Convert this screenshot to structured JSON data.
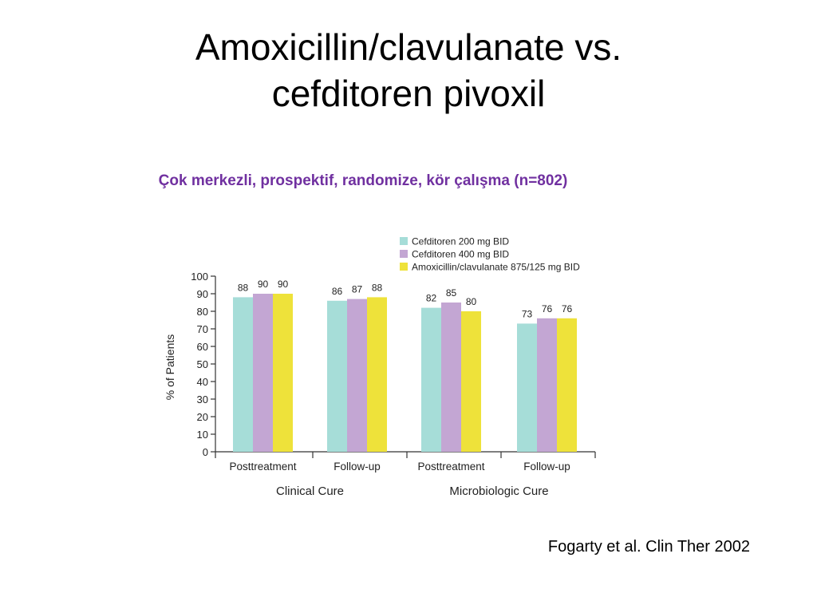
{
  "slide": {
    "title_line1": "Amoxicillin/clavulanate vs.",
    "title_line2": "cefditoren pivoxil",
    "subtitle": "Çok merkezli, prospektif, randomize,  kör çalışma (n=802)",
    "subtitle_color": "#7030A0",
    "citation": "Fogarty et al. Clin Ther 2002"
  },
  "chart_data": {
    "type": "bar",
    "title": "",
    "ylabel": "% of Patients",
    "xlabel": "",
    "ylim": [
      0,
      100
    ],
    "yticks": [
      0,
      10,
      20,
      30,
      40,
      50,
      60,
      70,
      80,
      90,
      100
    ],
    "grid": false,
    "legend_position": "top-right",
    "categories": [
      "Posttreatment",
      "Follow-up",
      "Posttreatment",
      "Follow-up"
    ],
    "groups": [
      {
        "label": "Clinical Cure",
        "categories": [
          "Posttreatment",
          "Follow-up"
        ]
      },
      {
        "label": "Microbiologic Cure",
        "categories": [
          "Posttreatment",
          "Follow-up"
        ]
      }
    ],
    "series": [
      {
        "name": "Cefditoren 200 mg BID",
        "color": "#A6DDD8",
        "values": [
          88,
          86,
          82,
          73
        ]
      },
      {
        "name": "Cefditoren 400 mg BID",
        "color": "#C3A6D3",
        "values": [
          90,
          87,
          85,
          76
        ]
      },
      {
        "name": "Amoxicillin/clavulanate 875/125 mg BID",
        "color": "#EEE23A",
        "values": [
          90,
          88,
          80,
          76
        ]
      }
    ]
  }
}
